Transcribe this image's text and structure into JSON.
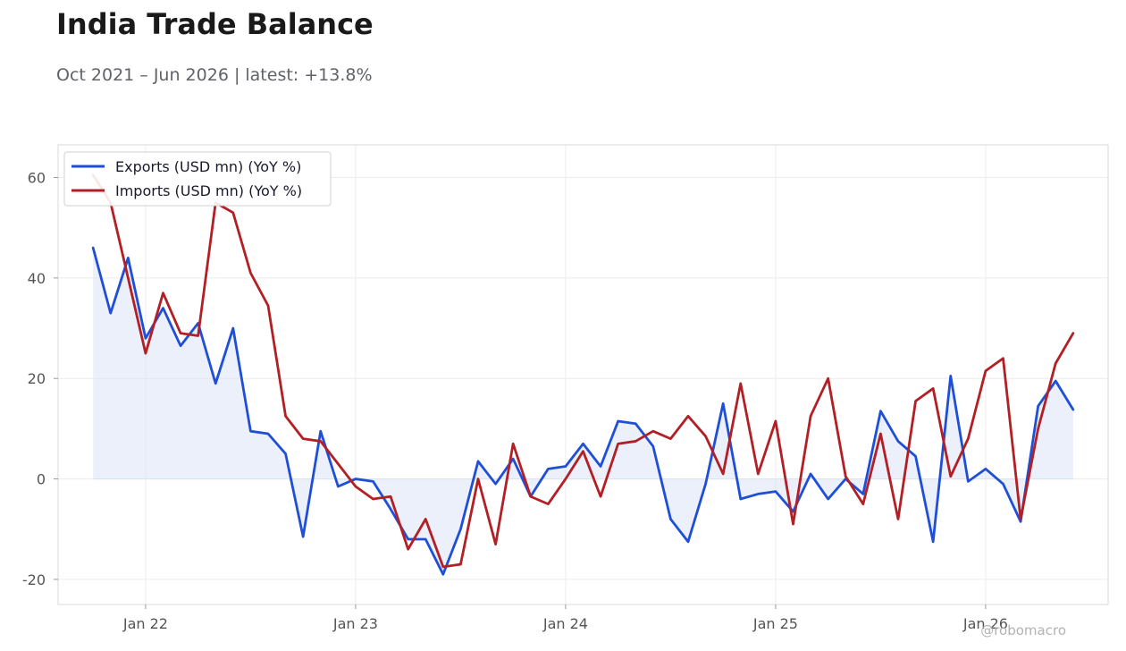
{
  "header": {
    "title": "India Trade Balance",
    "subtitle": "Oct 2021 – Jun 2026 | latest: +13.8%"
  },
  "watermark": "@robomacro",
  "colors": {
    "exports": "#1f4fd6",
    "imports": "#b21f24",
    "fill": "#dbe3f7",
    "grid": "#ececec",
    "frame": "#d9d9d9"
  },
  "chart_data": {
    "type": "line",
    "title": "India Trade Balance",
    "xlabel": "",
    "ylabel": "",
    "x": [
      "2021-10",
      "2021-11",
      "2021-12",
      "2022-01",
      "2022-02",
      "2022-03",
      "2022-04",
      "2022-05",
      "2022-06",
      "2022-07",
      "2022-08",
      "2022-09",
      "2022-10",
      "2022-11",
      "2022-12",
      "2023-01",
      "2023-02",
      "2023-03",
      "2023-04",
      "2023-05",
      "2023-06",
      "2023-07",
      "2023-08",
      "2023-09",
      "2023-10",
      "2023-11",
      "2023-12",
      "2024-01",
      "2024-02",
      "2024-03",
      "2024-04",
      "2024-05",
      "2024-06",
      "2024-07",
      "2024-08",
      "2024-09",
      "2024-10",
      "2024-11",
      "2024-12",
      "2025-01",
      "2025-02",
      "2025-03",
      "2025-04",
      "2025-05",
      "2025-06",
      "2025-07",
      "2025-08",
      "2025-09",
      "2025-10",
      "2025-11",
      "2025-12",
      "2026-01",
      "2026-02",
      "2026-03",
      "2026-04",
      "2026-05",
      "2026-06"
    ],
    "series": [
      {
        "name": "Exports (USD mn) (YoY %)",
        "values": [
          46,
          33,
          44,
          28,
          34,
          26.5,
          31,
          19,
          30,
          9.5,
          9,
          5,
          -11.5,
          9.5,
          -1.5,
          0,
          -0.5,
          -6,
          -12,
          -12,
          -19,
          -10,
          3.5,
          -1,
          4,
          -3.5,
          2,
          2.5,
          7,
          2.5,
          11.5,
          11,
          6.5,
          -8,
          -12.5,
          -1,
          15,
          -4,
          -3,
          -2.5,
          -6.5,
          1,
          -4,
          0,
          -3,
          13.5,
          7.5,
          4.5,
          -12.5,
          20.5,
          -0.5,
          2,
          -1,
          -8.5,
          14.5,
          19.5,
          13.8
        ]
      },
      {
        "name": "Imports (USD mn) (YoY %)",
        "values": [
          60.5,
          55,
          40,
          25,
          37,
          29,
          28.5,
          55,
          53,
          41,
          34.5,
          12.5,
          8,
          7.5,
          3,
          -1.5,
          -4,
          -3.5,
          -14,
          -8,
          -17.5,
          -17,
          0,
          -13,
          7,
          -3.5,
          -5,
          0,
          5.5,
          -3.5,
          7,
          7.5,
          9.5,
          8,
          12.5,
          8.5,
          1,
          19,
          1,
          11.5,
          -9,
          12.5,
          20,
          0.5,
          -5,
          9,
          -8,
          15.5,
          18,
          0.5,
          8,
          21.5,
          24,
          -8,
          10,
          23,
          29
        ]
      }
    ],
    "yticks": [
      60,
      40,
      20,
      0,
      -20
    ],
    "xticks": [
      {
        "label": "Jan 22",
        "date": "2022-01"
      },
      {
        "label": "Jan 23",
        "date": "2023-01"
      },
      {
        "label": "Jan 24",
        "date": "2024-01"
      },
      {
        "label": "Jan 25",
        "date": "2025-01"
      },
      {
        "label": "Jan 26",
        "date": "2026-01"
      }
    ],
    "ylim": [
      -25,
      66.5
    ],
    "xlim": [
      "2021-08",
      "2026-08"
    ],
    "grid": true,
    "legend": "top-left"
  }
}
